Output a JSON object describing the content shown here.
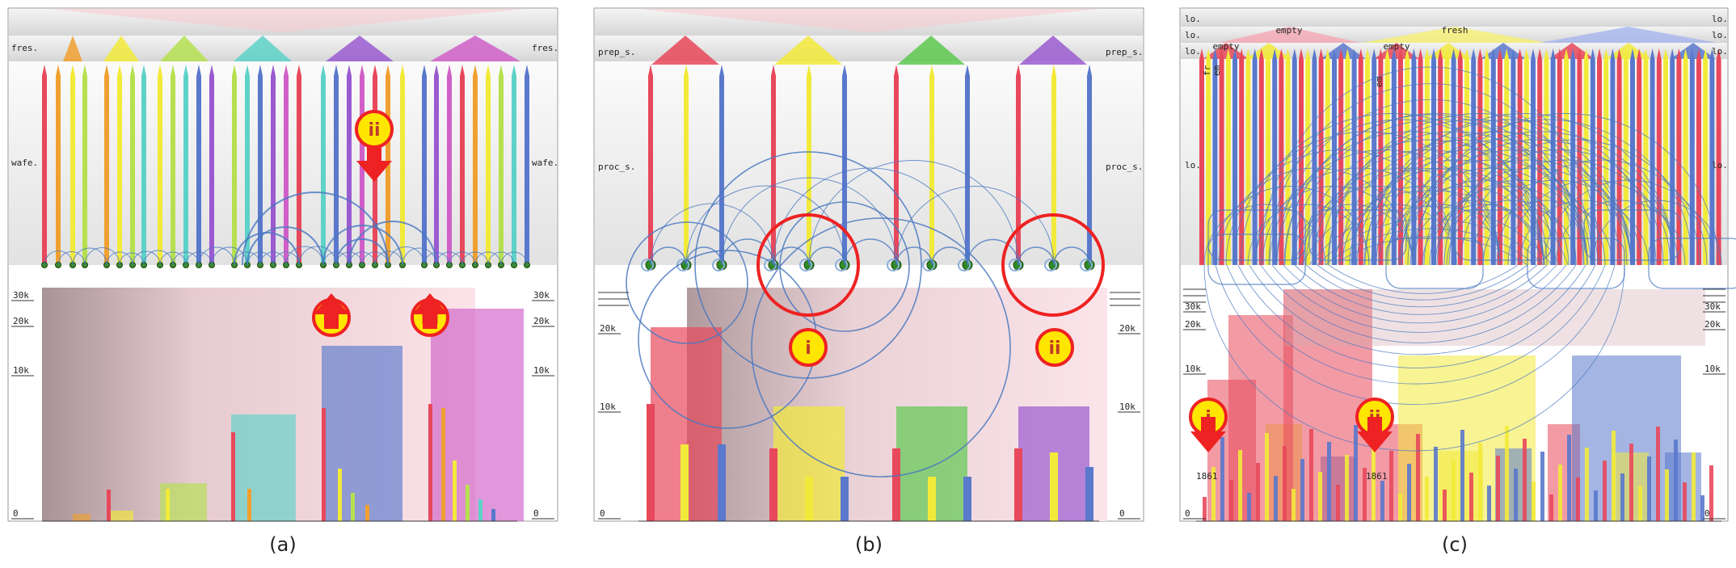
{
  "colors": {
    "red": "#e8485b",
    "orange": "#f0a030",
    "yellow": "#f2ea3a",
    "lime": "#b6e050",
    "green": "#5ec850",
    "cyan": "#5ed2c8",
    "blue": "#5a78cc",
    "purple": "#9a5ad0",
    "magenta": "#d060c8",
    "arc": "#4a78c0",
    "marker_red": "#ee2222",
    "marker_yellow": "#ffe600"
  },
  "panels": [
    {
      "caption": "(a)",
      "top_label": "fres.",
      "mid_label": "wafe.",
      "ticks": [
        "30k",
        "20k",
        "10k",
        "0"
      ],
      "markers": [
        "i",
        "ii",
        "iii"
      ]
    },
    {
      "caption": "(b)",
      "top_label": "prep_s.",
      "mid_label": "proc_s.",
      "ticks": [
        "20k",
        "10k",
        "0"
      ],
      "markers": [
        "i",
        "ii"
      ]
    },
    {
      "caption": "(c)",
      "side_label": "lo.",
      "ticks": [
        "30k",
        "20k",
        "10k",
        "0"
      ],
      "header_labels": [
        "empty",
        "fresh",
        "empty",
        "empty"
      ],
      "small_labels": [
        "fr",
        "em",
        "em"
      ],
      "markers": [
        "i",
        "ii"
      ],
      "values": [
        "1861",
        "1861"
      ]
    }
  ]
}
